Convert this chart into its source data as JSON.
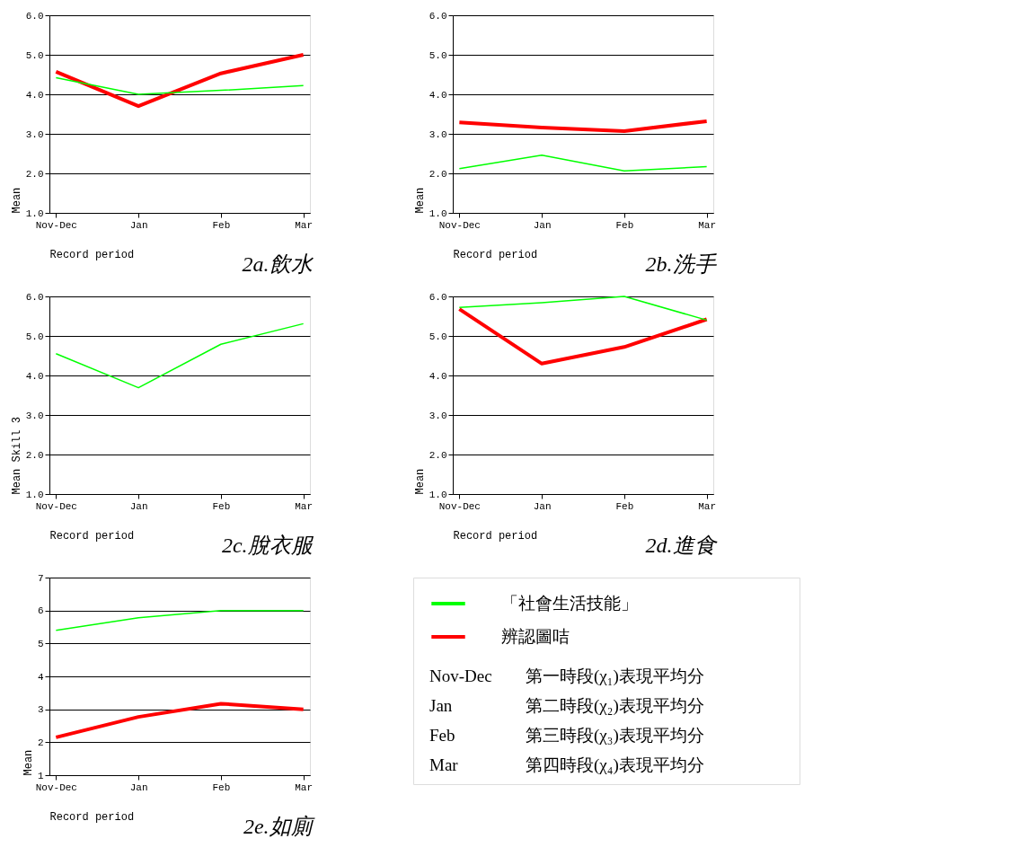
{
  "chart_data": [
    {
      "type": "line",
      "title": "2a.飲水",
      "xlabel": "Record period",
      "ylabel": "Mean",
      "categories": [
        "Nov-Dec",
        "Jan",
        "Feb",
        "Mar"
      ],
      "ylim": [
        1,
        6
      ],
      "yticks": [
        {
          "value": 1,
          "label": "1.0"
        },
        {
          "value": 2,
          "label": "2.0"
        },
        {
          "value": 3,
          "label": "3.0"
        },
        {
          "value": 4,
          "label": "4.0"
        },
        {
          "value": 5,
          "label": "5.0"
        },
        {
          "value": 6,
          "label": "6.0"
        }
      ],
      "grid": "y",
      "series": [
        {
          "color": "#00ff00",
          "values": [
            4.42,
            4.0,
            4.1,
            4.22
          ]
        },
        {
          "color": "#ff0000",
          "values": [
            4.57,
            3.7,
            4.53,
            5.0
          ]
        }
      ]
    },
    {
      "type": "line",
      "title": "2b.洗手",
      "xlabel": "Record period",
      "ylabel": "Mean",
      "categories": [
        "Nov-Dec",
        "Jan",
        "Feb",
        "Mar"
      ],
      "ylim": [
        1,
        6
      ],
      "yticks": [
        {
          "value": 1,
          "label": "1.0"
        },
        {
          "value": 2,
          "label": "2.0"
        },
        {
          "value": 3,
          "label": "3.0"
        },
        {
          "value": 4,
          "label": "4.0"
        },
        {
          "value": 5,
          "label": "5.0"
        },
        {
          "value": 6,
          "label": "6.0"
        }
      ],
      "grid": "y",
      "series": [
        {
          "color": "#00ff00",
          "values": [
            2.12,
            2.46,
            2.06,
            2.17
          ]
        },
        {
          "color": "#ff0000",
          "values": [
            3.29,
            3.16,
            3.07,
            3.32
          ]
        }
      ]
    },
    {
      "type": "line",
      "title": "2c.脫衣服",
      "xlabel": "Record period",
      "ylabel": "Mean Skill 3",
      "categories": [
        "Nov-Dec",
        "Jan",
        "Feb",
        "Mar"
      ],
      "ylim": [
        1,
        6
      ],
      "yticks": [
        {
          "value": 1,
          "label": "1.0"
        },
        {
          "value": 2,
          "label": "2.0"
        },
        {
          "value": 3,
          "label": "3.0"
        },
        {
          "value": 4,
          "label": "4.0"
        },
        {
          "value": 5,
          "label": "5.0"
        },
        {
          "value": 6,
          "label": "6.0"
        }
      ],
      "grid": "y",
      "series": [
        {
          "color": "#00ff00",
          "values": [
            4.55,
            3.69,
            4.79,
            5.31
          ]
        }
      ]
    },
    {
      "type": "line",
      "title": "2d.進食",
      "xlabel": "Record period",
      "ylabel": "Mean",
      "categories": [
        "Nov-Dec",
        "Jan",
        "Feb",
        "Mar"
      ],
      "ylim": [
        1,
        6
      ],
      "yticks": [
        {
          "value": 1,
          "label": "1.0"
        },
        {
          "value": 2,
          "label": "2.0"
        },
        {
          "value": 3,
          "label": "3.0"
        },
        {
          "value": 4,
          "label": "4.0"
        },
        {
          "value": 5,
          "label": "5.0"
        },
        {
          "value": 6,
          "label": "6.0"
        }
      ],
      "grid": "y",
      "series": [
        {
          "color": "#00ff00",
          "values": [
            5.72,
            5.84,
            6.0,
            5.4
          ]
        },
        {
          "color": "#ff0000",
          "values": [
            5.68,
            4.3,
            4.72,
            5.42
          ]
        }
      ]
    },
    {
      "type": "line",
      "title": "2e.如廁",
      "xlabel": "Record period",
      "ylabel": "Mean",
      "categories": [
        "Nov-Dec",
        "Jan",
        "Feb",
        "Mar"
      ],
      "ylim": [
        1,
        7
      ],
      "yticks": [
        1,
        2,
        3,
        4,
        5,
        6,
        7
      ],
      "grid": "y",
      "series": [
        {
          "color": "#00ff00",
          "values": [
            5.4,
            5.78,
            6.0,
            6.0
          ]
        },
        {
          "color": "#ff0000",
          "values": [
            2.15,
            2.77,
            3.17,
            3.0
          ]
        }
      ]
    },
    {
      "type": "other",
      "series": [
        {
          "name": "「社會生活技能」",
          "color": "#00ff00"
        },
        {
          "name": "辨認圖咭",
          "color": "#ff0000"
        }
      ],
      "annotations": [
        "Nov-Dec",
        "第一時段(χ₁)表現平均分",
        "Jan",
        "第二時段(χ₂)表現平均分",
        "Feb",
        "第三時段(χ₃)表現平均分",
        "Mar",
        "第四時段(χ₄)表現平均分"
      ]
    }
  ]
}
